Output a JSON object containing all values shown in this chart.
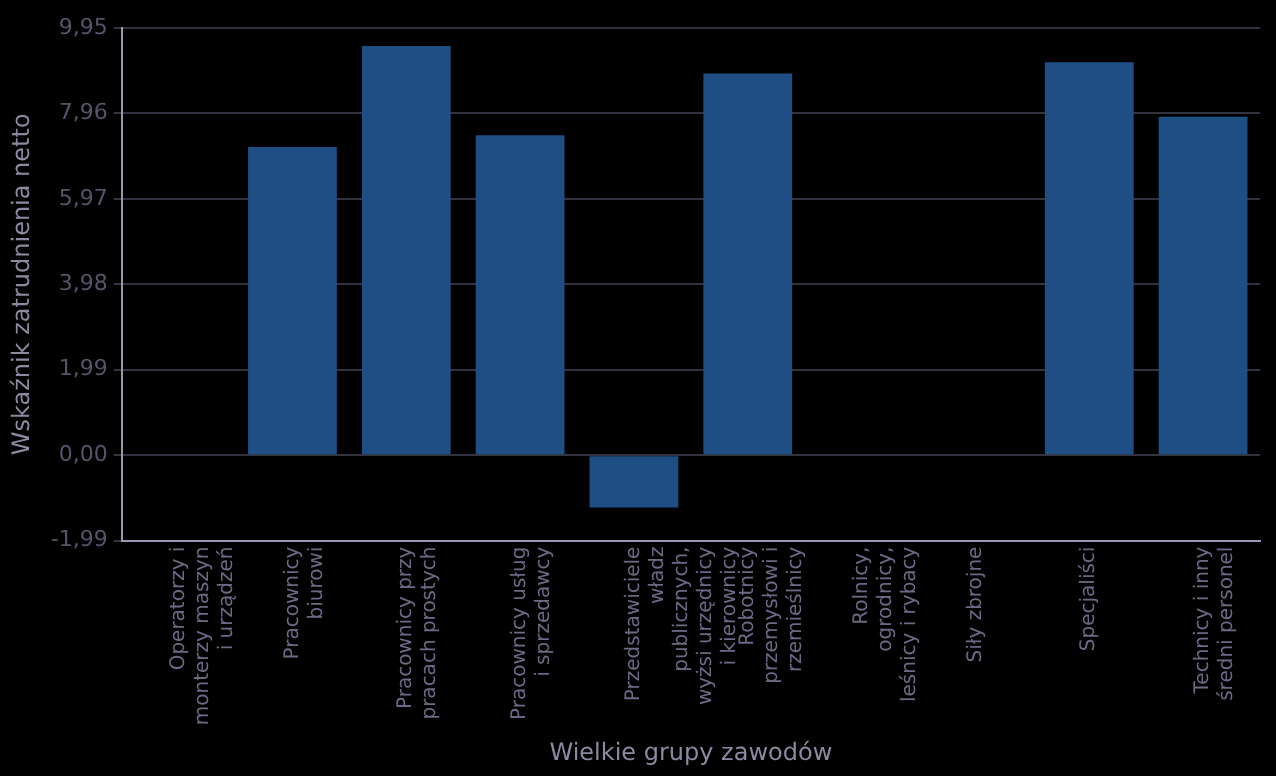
{
  "chart_data": {
    "type": "bar",
    "xlabel": "Wielkie grupy zawodów",
    "ylabel": "Wskaźnik zatrudnienia netto",
    "categories": [
      "Operatorzy i monterzy maszyn i urządzeń",
      "Pracownicy biurowi",
      "Pracownicy przy pracach prostych",
      "Pracownicy usług i sprzedawcy",
      "Przedstawiciele władz publicznych, wyżsi urzędnicy i kierownicy",
      "Robotnicy przemysłowi i rzemieślnicy",
      "Rolnicy, ogrodnicy, leśnicy i rybacy",
      "Siły zbrojne",
      "Specjaliści",
      "Technicy i inny średni personel"
    ],
    "values": [
      null,
      7.18,
      9.53,
      7.45,
      -1.22,
      8.89,
      null,
      null,
      9.15,
      7.88
    ],
    "color": "#1f4e85",
    "ylim": [
      -1.99,
      9.95
    ],
    "yticks": [
      {
        "value": -1.99,
        "label": "-1,99"
      },
      {
        "value": 0,
        "label": "0,00"
      },
      {
        "value": 1.99,
        "label": "1,99"
      },
      {
        "value": 3.98,
        "label": "3,98"
      },
      {
        "value": 5.97,
        "label": "5,97"
      },
      {
        "value": 7.96,
        "label": "7,96"
      },
      {
        "value": 9.95,
        "label": "9,95"
      }
    ],
    "grid": "y",
    "legend": false
  }
}
